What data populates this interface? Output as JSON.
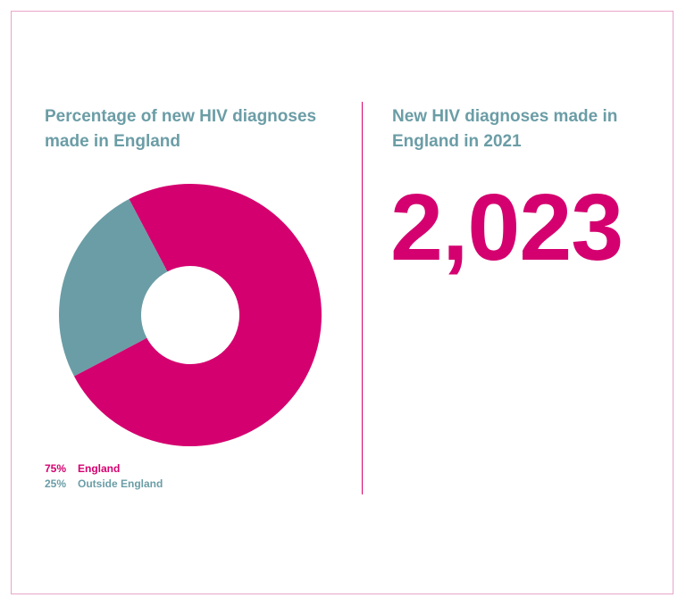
{
  "left_panel": {
    "title": "Percentage of new HIV diagnoses\nmade in England"
  },
  "right_panel": {
    "title": "New HIV diagnoses made in\nEngland in 2021",
    "value": "2,023"
  },
  "colors": {
    "england": "#d4006f",
    "outside_england": "#6b9da6",
    "frame_border": "#e8a6c8",
    "divider": "#d9006f"
  },
  "chart_data": {
    "type": "pie",
    "donut": true,
    "title": "Percentage of new HIV diagnoses made in England",
    "categories": [
      "England",
      "Outside England"
    ],
    "values": [
      75,
      25
    ],
    "unit": "%",
    "legend": [
      {
        "pct": "75%",
        "label": "England"
      },
      {
        "pct": "25%",
        "label": "Outside England"
      }
    ],
    "legend_placement": "bottom-left"
  }
}
